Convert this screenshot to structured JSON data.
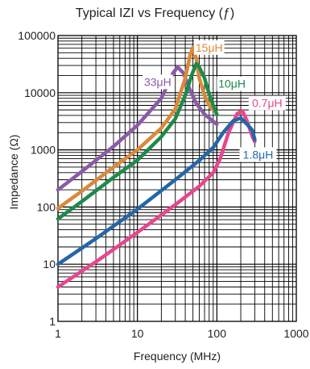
{
  "chart_data": {
    "type": "line",
    "title": "Typical IZI vs Frequency (ƒ)",
    "xlabel": "Frequency (MHz)",
    "ylabel": "Impedance (Ω)",
    "xscale": "log",
    "yscale": "log",
    "xlim": [
      1,
      1000
    ],
    "ylim": [
      1,
      100000
    ],
    "grid": true,
    "x_ticks": [
      "1",
      "10",
      "100",
      "1000"
    ],
    "y_ticks": [
      "1",
      "10",
      "100",
      "1000",
      "10000",
      "100000"
    ],
    "series": [
      {
        "name": "33μH",
        "color": "#8a5aa8",
        "x": [
          1,
          2,
          5,
          10,
          20,
          28,
          32,
          38,
          45,
          55,
          70,
          100
        ],
        "y": [
          200,
          420,
          1150,
          2700,
          8000,
          22000,
          28000,
          22000,
          12000,
          6500,
          4200,
          2800
        ]
      },
      {
        "name": "15μH",
        "color": "#d98a3a",
        "x": [
          1,
          2,
          5,
          10,
          20,
          30,
          40,
          46,
          50,
          55,
          60,
          70,
          80,
          90
        ],
        "y": [
          95,
          190,
          500,
          1000,
          2400,
          5200,
          18000,
          45000,
          62000,
          40000,
          18000,
          9000,
          6000,
          5000
        ]
      },
      {
        "name": "10μH",
        "color": "#1e8a4a",
        "x": [
          1,
          2,
          5,
          10,
          20,
          30,
          40,
          48,
          55,
          60,
          70,
          80,
          90,
          100
        ],
        "y": [
          62,
          125,
          330,
          660,
          1700,
          3500,
          9000,
          20000,
          32000,
          28000,
          18000,
          9500,
          6000,
          4200
        ]
      },
      {
        "name": "0.7μH",
        "color": "#e8468c",
        "x": [
          1,
          3,
          10,
          30,
          60,
          90,
          110,
          140,
          180,
          210,
          240,
          280,
          300
        ],
        "y": [
          4,
          11,
          36,
          110,
          230,
          400,
          700,
          2000,
          4300,
          4800,
          3200,
          1700,
          1400
        ]
      },
      {
        "name": "1.8μH",
        "color": "#2466a8",
        "x": [
          1,
          3,
          10,
          30,
          60,
          90,
          120,
          160,
          200,
          240,
          280,
          300
        ],
        "y": [
          10,
          28,
          92,
          300,
          650,
          1100,
          2000,
          3200,
          3600,
          2800,
          2200,
          1500
        ]
      }
    ],
    "annotations": [
      {
        "text": "33μH",
        "x": 18,
        "y": 14000,
        "color": "#8a5aa8",
        "anchor": "middle"
      },
      {
        "text": "15μH",
        "x": 80,
        "y": 56000,
        "color": "#d98a3a",
        "anchor": "middle"
      },
      {
        "text": "10μH",
        "x": 155,
        "y": 13000,
        "color": "#1e8a4a",
        "anchor": "middle"
      },
      {
        "text": "0.7μH",
        "x": 430,
        "y": 6000,
        "color": "#e8468c",
        "anchor": "middle"
      },
      {
        "text": "1.8μH",
        "x": 330,
        "y": 750,
        "color": "#2466a8",
        "anchor": "middle"
      }
    ]
  }
}
